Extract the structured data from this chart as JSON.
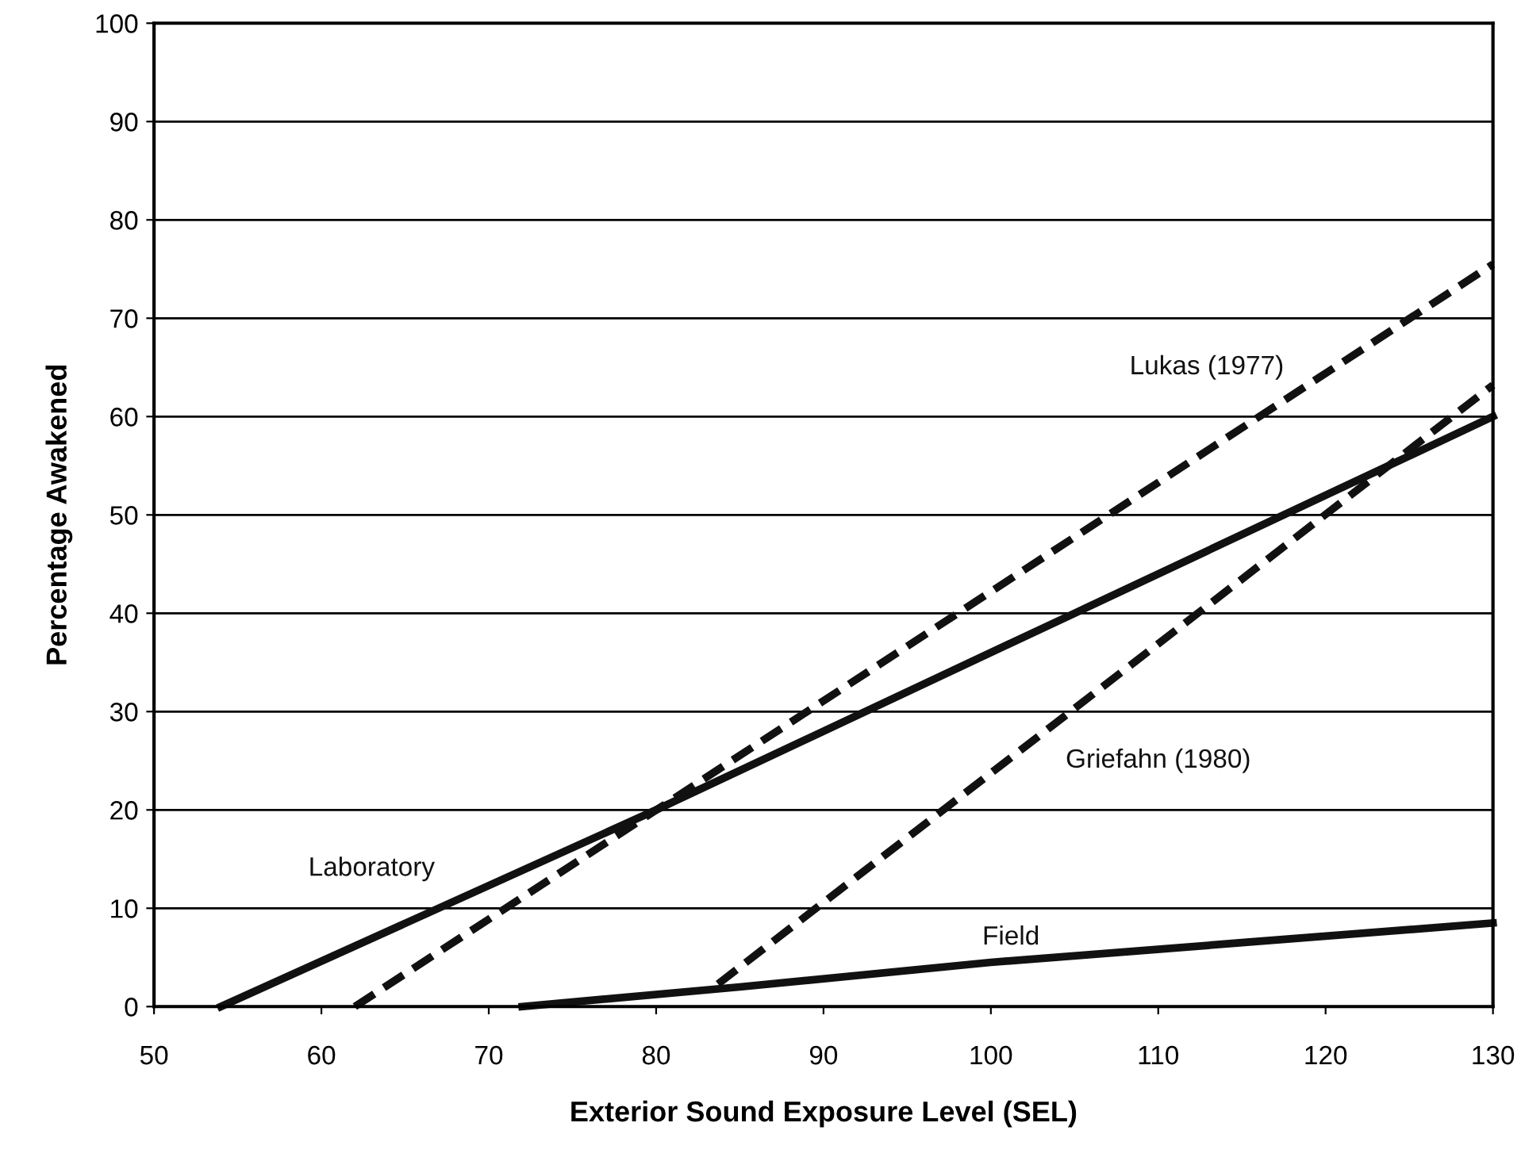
{
  "chart_data": {
    "type": "line",
    "xlabel": "Exterior Sound Exposure Level (SEL)",
    "ylabel": "Percentage Awakened",
    "xlim": [
      50,
      130
    ],
    "ylim": [
      0,
      100
    ],
    "xticks": [
      50,
      60,
      70,
      80,
      90,
      100,
      110,
      120,
      130
    ],
    "yticks": [
      0,
      10,
      20,
      30,
      40,
      50,
      60,
      70,
      80,
      90,
      100
    ],
    "grid": "y",
    "marker": "none",
    "series": [
      {
        "name": "Laboratory",
        "color": "#111111",
        "line_style": "solid",
        "x": [
          54,
          80,
          105,
          130
        ],
        "values": [
          0,
          20,
          40,
          60
        ]
      },
      {
        "name": "Field",
        "color": "#111111",
        "line_style": "solid",
        "x": [
          72,
          85,
          100,
          115,
          130
        ],
        "values": [
          0,
          2,
          4.5,
          6.5,
          8.5
        ]
      },
      {
        "name": "Lukas (1977)",
        "color": "#111111",
        "line_style": "dashed",
        "x": [
          62,
          130
        ],
        "values": [
          0,
          75.5
        ]
      },
      {
        "name": "Griefahn (1980)",
        "color": "#111111",
        "line_style": "dashed",
        "x": [
          83.7,
          130
        ],
        "values": [
          2.3,
          63.2
        ]
      }
    ]
  }
}
